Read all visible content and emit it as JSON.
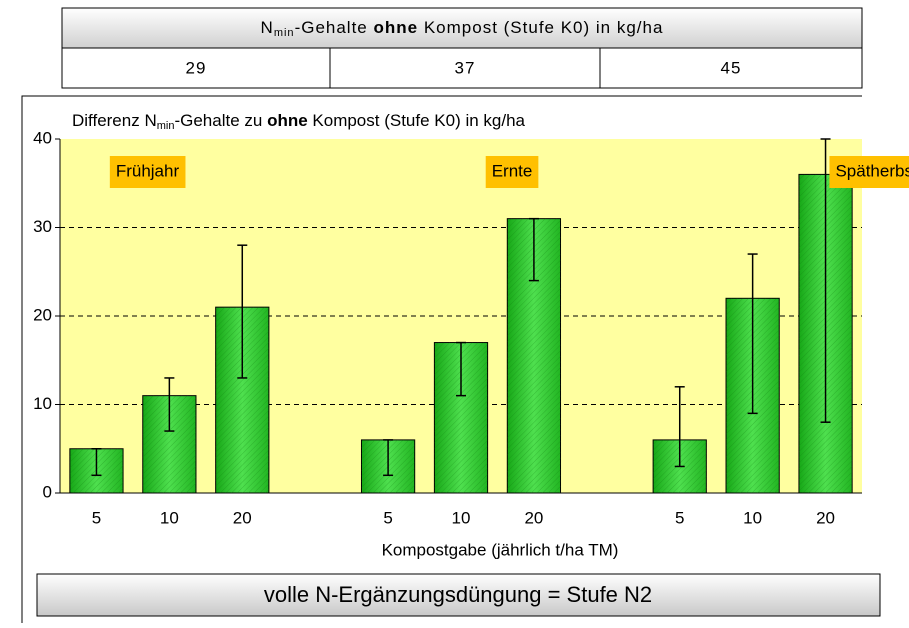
{
  "table": {
    "header_parts": [
      "N",
      "min",
      "-Gehalte ",
      "ohne",
      " Kompost (Stufe K0) in kg/ha"
    ],
    "values": [
      29,
      37,
      45
    ]
  },
  "chart_data": {
    "type": "bar",
    "title_parts": [
      "Differenz N",
      "min",
      "-Gehalte zu ",
      "ohne",
      " Kompost (Stufe K0) in kg/ha"
    ],
    "groups": [
      "Frühjahr",
      "Ernte",
      "Spätherbst"
    ],
    "categories": [
      "5",
      "10",
      "20",
      null,
      "5",
      "10",
      "20",
      null,
      "5",
      "10",
      "20"
    ],
    "values": [
      5,
      11,
      21,
      null,
      6,
      17,
      31,
      null,
      6,
      22,
      36
    ],
    "error_lower": [
      2,
      7,
      13,
      null,
      2,
      11,
      24,
      null,
      3,
      9,
      8
    ],
    "error_upper": [
      5,
      13,
      28,
      null,
      6,
      17,
      31,
      null,
      12,
      27,
      40
    ],
    "color": "#33cc33",
    "xlabel": "Kompostgabe (jährlich t/ha TM)",
    "ylim": [
      0,
      40
    ],
    "yticks": [
      0,
      10,
      20,
      30,
      40
    ],
    "grid": true,
    "footer": "volle N-Ergänzungsdüngung = Stufe N2"
  }
}
